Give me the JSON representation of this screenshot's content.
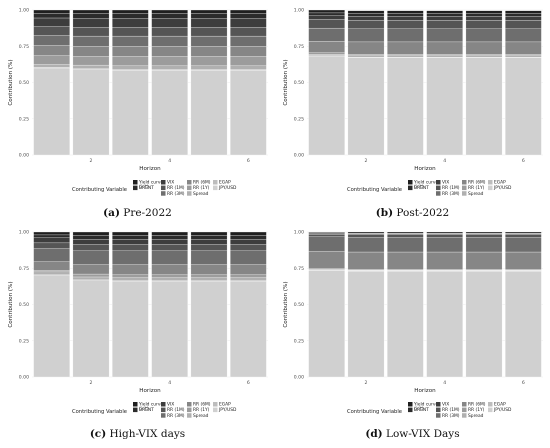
{
  "legend": {
    "title": "Contributing Variable",
    "items": [
      {
        "label": "Yield curve\n(i-i*)",
        "color": "#1f1f1f"
      },
      {
        "label": "BRENT",
        "color": "#2b2b2b"
      },
      {
        "label": "VIX",
        "color": "#3d3d3d"
      },
      {
        "label": "RR (1M)",
        "color": "#555555"
      },
      {
        "label": "RR (3M)",
        "color": "#6e6e6e"
      },
      {
        "label": "RR (6M)",
        "color": "#868686"
      },
      {
        "label": "RR (1Y)",
        "color": "#9c9c9c"
      },
      {
        "label": "Spread",
        "color": "#b0b0b0"
      },
      {
        "label": "EGAP",
        "color": "#bdbdbd"
      },
      {
        "label": "JPY/USD",
        "color": "#d0d0d0"
      }
    ]
  },
  "panels": [
    {
      "caption_letter": "(a)",
      "caption_text": " Pre-2022"
    },
    {
      "caption_letter": "(b)",
      "caption_text": " Post-2022"
    },
    {
      "caption_letter": "(c)",
      "caption_text": " High-VIX days"
    },
    {
      "caption_letter": "(d)",
      "caption_text": " Low-VIX Days"
    }
  ],
  "chart_data": [
    {
      "type": "bar",
      "stacked": true,
      "xlabel": "Horizon",
      "ylabel": "Contribution (%)",
      "categories": [
        1,
        2,
        3,
        4,
        5,
        6
      ],
      "x_ticks": [
        2,
        4,
        6
      ],
      "y_ticks": [
        "0.00",
        "0.25",
        "0.50",
        "0.75",
        "1.00"
      ],
      "ylim": [
        0,
        1
      ],
      "series": [
        {
          "name": "JPY/USD",
          "values": [
            0.6,
            0.59,
            0.585,
            0.585,
            0.585,
            0.585
          ]
        },
        {
          "name": "EGAP",
          "values": [
            0.005,
            0.005,
            0.005,
            0.005,
            0.005,
            0.005
          ]
        },
        {
          "name": "Spread",
          "values": [
            0.02,
            0.025,
            0.025,
            0.025,
            0.025,
            0.025
          ]
        },
        {
          "name": "RR (1Y)",
          "values": [
            0.06,
            0.06,
            0.065,
            0.065,
            0.065,
            0.065
          ]
        },
        {
          "name": "RR (6M)",
          "values": [
            0.07,
            0.07,
            0.07,
            0.07,
            0.07,
            0.07
          ]
        },
        {
          "name": "RR (3M)",
          "values": [
            0.07,
            0.07,
            0.07,
            0.07,
            0.07,
            0.07
          ]
        },
        {
          "name": "RR (1M)",
          "values": [
            0.06,
            0.06,
            0.06,
            0.06,
            0.06,
            0.06
          ]
        },
        {
          "name": "VIX",
          "values": [
            0.06,
            0.06,
            0.06,
            0.06,
            0.06,
            0.06
          ]
        },
        {
          "name": "BRENT",
          "values": [
            0.03,
            0.035,
            0.035,
            0.035,
            0.035,
            0.035
          ]
        },
        {
          "name": "Yield curve (i-i*)",
          "values": [
            0.025,
            0.025,
            0.025,
            0.025,
            0.025,
            0.025
          ]
        }
      ]
    },
    {
      "type": "bar",
      "stacked": true,
      "xlabel": "Horizon",
      "ylabel": "Contribution (%)",
      "categories": [
        1,
        2,
        3,
        4,
        5,
        6
      ],
      "x_ticks": [
        2,
        4,
        6
      ],
      "y_ticks": [
        "0.00",
        "0.25",
        "0.50",
        "0.75",
        "1.00"
      ],
      "ylim": [
        0,
        1
      ],
      "series": [
        {
          "name": "JPY/USD",
          "values": [
            0.68,
            0.67,
            0.67,
            0.67,
            0.67,
            0.67
          ]
        },
        {
          "name": "EGAP",
          "values": [
            0.005,
            0.005,
            0.005,
            0.005,
            0.005,
            0.005
          ]
        },
        {
          "name": "Spread",
          "values": [
            0.01,
            0.01,
            0.01,
            0.01,
            0.01,
            0.01
          ]
        },
        {
          "name": "RR (1Y)",
          "values": [
            0.01,
            0.01,
            0.01,
            0.01,
            0.01,
            0.01
          ]
        },
        {
          "name": "RR (6M)",
          "values": [
            0.08,
            0.085,
            0.085,
            0.085,
            0.085,
            0.085
          ]
        },
        {
          "name": "RR (3M)",
          "values": [
            0.09,
            0.09,
            0.09,
            0.09,
            0.09,
            0.09
          ]
        },
        {
          "name": "RR (1M)",
          "values": [
            0.06,
            0.06,
            0.06,
            0.06,
            0.06,
            0.06
          ]
        },
        {
          "name": "VIX",
          "values": [
            0.025,
            0.025,
            0.025,
            0.025,
            0.025,
            0.025
          ]
        },
        {
          "name": "BRENT",
          "values": [
            0.02,
            0.02,
            0.02,
            0.02,
            0.02,
            0.02
          ]
        },
        {
          "name": "Yield curve (i-i*)",
          "values": [
            0.02,
            0.02,
            0.02,
            0.02,
            0.02,
            0.02
          ]
        }
      ]
    },
    {
      "type": "bar",
      "stacked": true,
      "xlabel": "Horizon",
      "ylabel": "Contribution (%)",
      "categories": [
        1,
        2,
        3,
        4,
        5,
        6
      ],
      "x_ticks": [
        2,
        4,
        6
      ],
      "y_ticks": [
        "0.00",
        "0.25",
        "0.50",
        "0.75",
        "1.00"
      ],
      "ylim": [
        0,
        1
      ],
      "series": [
        {
          "name": "JPY/USD",
          "values": [
            0.7,
            0.665,
            0.66,
            0.66,
            0.66,
            0.66
          ]
        },
        {
          "name": "EGAP",
          "values": [
            0.005,
            0.005,
            0.005,
            0.005,
            0.005,
            0.005
          ]
        },
        {
          "name": "Spread",
          "values": [
            0.02,
            0.02,
            0.02,
            0.02,
            0.02,
            0.02
          ]
        },
        {
          "name": "RR (1Y)",
          "values": [
            0.01,
            0.02,
            0.02,
            0.02,
            0.02,
            0.02
          ]
        },
        {
          "name": "RR (6M)",
          "values": [
            0.06,
            0.065,
            0.07,
            0.07,
            0.07,
            0.07
          ]
        },
        {
          "name": "RR (3M)",
          "values": [
            0.09,
            0.095,
            0.095,
            0.095,
            0.095,
            0.095
          ]
        },
        {
          "name": "RR (1M)",
          "values": [
            0.04,
            0.045,
            0.045,
            0.045,
            0.045,
            0.045
          ]
        },
        {
          "name": "VIX",
          "values": [
            0.035,
            0.035,
            0.035,
            0.035,
            0.035,
            0.035
          ]
        },
        {
          "name": "BRENT",
          "values": [
            0.02,
            0.025,
            0.025,
            0.025,
            0.025,
            0.025
          ]
        },
        {
          "name": "Yield curve (i-i*)",
          "values": [
            0.02,
            0.025,
            0.025,
            0.025,
            0.025,
            0.025
          ]
        }
      ]
    },
    {
      "type": "bar",
      "stacked": true,
      "xlabel": "Horizon",
      "ylabel": "Contribution (%)",
      "categories": [
        1,
        2,
        3,
        4,
        5,
        6
      ],
      "x_ticks": [
        2,
        4,
        6
      ],
      "y_ticks": [
        "0.00",
        "0.25",
        "0.50",
        "0.75",
        "1.00"
      ],
      "ylim": [
        0,
        1
      ],
      "series": [
        {
          "name": "JPY/USD",
          "values": [
            0.735,
            0.73,
            0.73,
            0.73,
            0.73,
            0.73
          ]
        },
        {
          "name": "EGAP",
          "values": [
            0.003,
            0.003,
            0.003,
            0.003,
            0.003,
            0.003
          ]
        },
        {
          "name": "Spread",
          "values": [
            0.004,
            0.004,
            0.004,
            0.004,
            0.004,
            0.004
          ]
        },
        {
          "name": "RR (1Y)",
          "values": [
            0.005,
            0.005,
            0.005,
            0.005,
            0.005,
            0.005
          ]
        },
        {
          "name": "RR (6M)",
          "values": [
            0.12,
            0.12,
            0.12,
            0.12,
            0.12,
            0.12
          ]
        },
        {
          "name": "RR (3M)",
          "values": [
            0.1,
            0.1,
            0.1,
            0.1,
            0.1,
            0.1
          ]
        },
        {
          "name": "RR (1M)",
          "values": [
            0.018,
            0.02,
            0.02,
            0.02,
            0.02,
            0.02
          ]
        },
        {
          "name": "VIX",
          "values": [
            0.005,
            0.005,
            0.005,
            0.005,
            0.005,
            0.005
          ]
        },
        {
          "name": "BRENT",
          "values": [
            0.005,
            0.005,
            0.005,
            0.005,
            0.005,
            0.005
          ]
        },
        {
          "name": "Yield curve (i-i*)",
          "values": [
            0.005,
            0.008,
            0.008,
            0.008,
            0.008,
            0.008
          ]
        }
      ]
    }
  ]
}
